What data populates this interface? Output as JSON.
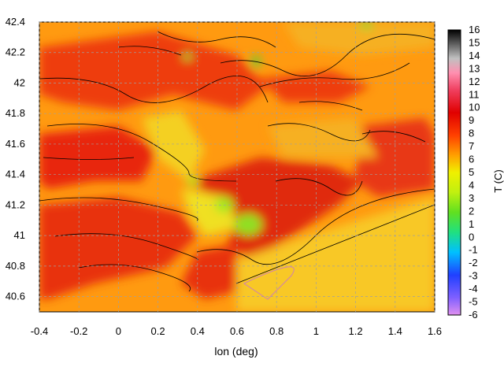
{
  "chart_data": {
    "type": "heatmap",
    "xlabel": "lon (deg)",
    "colorbar_label": "T (C)",
    "xlim": [
      -0.4,
      1.6
    ],
    "ylim": [
      40.5,
      42.4
    ],
    "xticks": [
      "-0.4",
      "-0.2",
      "0",
      "0.2",
      "0.4",
      "0.6",
      "0.8",
      "1",
      "1.2",
      "1.4",
      "1.6"
    ],
    "yticks": [
      "40.6",
      "40.8",
      "41",
      "41.2",
      "41.4",
      "41.6",
      "41.8",
      "42",
      "42.2",
      "42.4"
    ],
    "colorbar_range": [
      -6,
      16
    ],
    "colorbar_ticks": [
      "16",
      "15",
      "14",
      "13",
      "12",
      "11",
      "10",
      "9",
      "8",
      "7",
      "6",
      "5",
      "4",
      "3",
      "2",
      "1",
      "0",
      "-1",
      "-2",
      "-3",
      "-4",
      "-5",
      "-6"
    ],
    "colorbar_colors": [
      "#e090f0",
      "#8060ff",
      "#2040ff",
      "#00c0ff",
      "#20e080",
      "#60e020",
      "#c0f010",
      "#f0f000",
      "#ffa000",
      "#ff4000",
      "#e00000",
      "#f04060",
      "#ff90b0",
      "#c0c0c0",
      "#606060",
      "#000000"
    ],
    "grid": true,
    "contours": true
  }
}
